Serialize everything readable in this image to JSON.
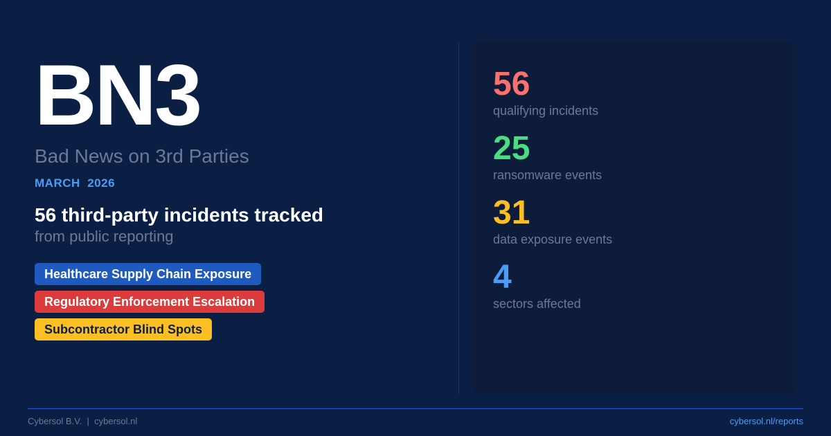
{
  "brand": {
    "logo": "BN3",
    "subtitle": "Bad News on 3rd Parties",
    "date": "MARCH  2026"
  },
  "headline": {
    "title": "56 third-party incidents tracked",
    "subtitle": "from public reporting"
  },
  "tags": [
    {
      "label": "Healthcare Supply Chain Exposure",
      "color": "#1f5bbf",
      "text_color": "#ffffff"
    },
    {
      "label": "Regulatory Enforcement Escalation",
      "color": "#dc3b3b",
      "text_color": "#ffffff"
    },
    {
      "label": "Subcontractor Blind Spots",
      "color": "#fbbf24",
      "text_color": "#0b1f45"
    }
  ],
  "stats": [
    {
      "value": "56",
      "label": "qualifying incidents",
      "color": "#f87171"
    },
    {
      "value": "25",
      "label": "ransomware events",
      "color": "#4ade80"
    },
    {
      "value": "31",
      "label": "data exposure events",
      "color": "#fbbf24"
    },
    {
      "value": "4",
      "label": "sectors affected",
      "color": "#4d9cf6"
    }
  ],
  "footer": {
    "left": "Cybersol B.V.  |  cybersol.nl",
    "right": "cybersol.nl/reports"
  }
}
